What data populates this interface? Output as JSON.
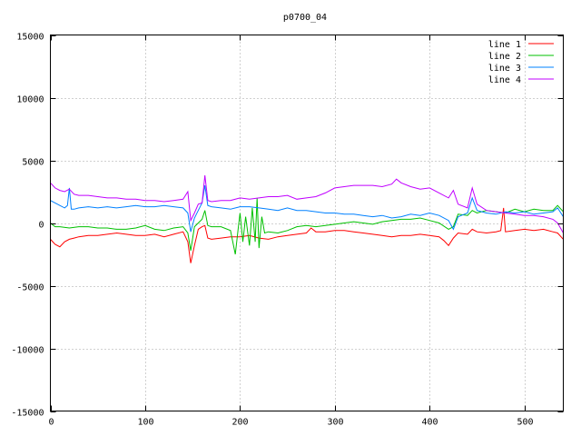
{
  "chart_data": {
    "type": "line",
    "title": "p0700_04",
    "xlabel": "",
    "ylabel": "",
    "xlim": [
      0,
      541
    ],
    "ylim": [
      -15000,
      15000
    ],
    "xticks": [
      0,
      100,
      200,
      300,
      400,
      500
    ],
    "yticks": [
      -15000,
      -10000,
      -5000,
      0,
      5000,
      10000,
      15000
    ],
    "grid": true,
    "legend_position": "top-right",
    "series": [
      {
        "name": "line 1",
        "color": "#ff0000",
        "x": [
          0,
          5,
          10,
          15,
          20,
          25,
          30,
          40,
          50,
          60,
          70,
          80,
          90,
          100,
          110,
          120,
          130,
          140,
          145,
          148,
          152,
          156,
          160,
          163,
          166,
          170,
          180,
          190,
          200,
          210,
          220,
          230,
          240,
          250,
          260,
          270,
          275,
          280,
          290,
          300,
          310,
          320,
          330,
          340,
          350,
          360,
          370,
          380,
          390,
          400,
          410,
          415,
          420,
          425,
          430,
          440,
          445,
          450,
          460,
          470,
          475,
          478,
          480,
          490,
          500,
          510,
          520,
          530,
          535,
          541
        ],
        "y": [
          -1300,
          -1700,
          -1900,
          -1500,
          -1300,
          -1200,
          -1100,
          -1000,
          -1000,
          -900,
          -800,
          -900,
          -1000,
          -1000,
          -900,
          -1100,
          -900,
          -700,
          -1500,
          -3200,
          -1800,
          -500,
          -300,
          -200,
          -1200,
          -1300,
          -1200,
          -1100,
          -1100,
          -1000,
          -1200,
          -1300,
          -1100,
          -1000,
          -900,
          -800,
          -400,
          -700,
          -700,
          -600,
          -600,
          -700,
          -800,
          -900,
          -1000,
          -1100,
          -1000,
          -1000,
          -900,
          -1000,
          -1100,
          -1400,
          -1800,
          -1200,
          -800,
          -900,
          -500,
          -700,
          -800,
          -700,
          -600,
          1200,
          -700,
          -600,
          -500,
          -600,
          -500,
          -700,
          -800,
          -1300
        ]
      },
      {
        "name": "line 2",
        "color": "#00c000",
        "x": [
          0,
          5,
          10,
          20,
          30,
          40,
          50,
          60,
          70,
          80,
          90,
          100,
          110,
          120,
          130,
          140,
          145,
          148,
          152,
          156,
          160,
          163,
          166,
          170,
          180,
          190,
          195,
          198,
          200,
          203,
          206,
          210,
          213,
          216,
          218,
          220,
          223,
          226,
          230,
          240,
          250,
          260,
          270,
          280,
          290,
          300,
          310,
          320,
          330,
          340,
          350,
          360,
          370,
          380,
          390,
          400,
          410,
          420,
          425,
          430,
          440,
          445,
          450,
          460,
          470,
          480,
          490,
          500,
          510,
          520,
          530,
          535,
          541
        ],
        "y": [
          0,
          -300,
          -300,
          -400,
          -300,
          -300,
          -400,
          -400,
          -500,
          -500,
          -400,
          -200,
          -500,
          -600,
          -400,
          -300,
          -800,
          -2200,
          -300,
          0,
          300,
          1000,
          -200,
          -300,
          -300,
          -600,
          -2500,
          -500,
          800,
          -1500,
          500,
          -1800,
          1200,
          -1500,
          2000,
          -2000,
          500,
          -800,
          -700,
          -800,
          -600,
          -300,
          -200,
          -300,
          -200,
          -100,
          0,
          100,
          0,
          -100,
          100,
          200,
          300,
          300,
          400,
          200,
          0,
          -500,
          -300,
          700,
          600,
          1000,
          800,
          1000,
          900,
          800,
          1100,
          900,
          1100,
          1000,
          1000,
          1400,
          900
        ]
      },
      {
        "name": "line 3",
        "color": "#0080ff",
        "x": [
          0,
          5,
          10,
          15,
          18,
          20,
          22,
          25,
          30,
          40,
          50,
          60,
          70,
          80,
          90,
          100,
          110,
          120,
          130,
          140,
          145,
          148,
          152,
          156,
          160,
          163,
          166,
          170,
          180,
          190,
          200,
          210,
          220,
          230,
          240,
          250,
          260,
          270,
          280,
          290,
          300,
          310,
          320,
          330,
          340,
          350,
          360,
          370,
          380,
          390,
          400,
          410,
          420,
          425,
          430,
          440,
          445,
          450,
          460,
          470,
          480,
          490,
          500,
          510,
          520,
          530,
          535,
          541
        ],
        "y": [
          1800,
          1600,
          1400,
          1200,
          1400,
          2800,
          1100,
          1100,
          1200,
          1300,
          1200,
          1300,
          1200,
          1300,
          1400,
          1300,
          1300,
          1400,
          1300,
          1200,
          800,
          -700,
          400,
          1000,
          1600,
          3000,
          1400,
          1300,
          1200,
          1100,
          1300,
          1300,
          1200,
          1100,
          1000,
          1200,
          1000,
          1000,
          900,
          800,
          800,
          700,
          700,
          600,
          500,
          600,
          400,
          500,
          700,
          600,
          800,
          600,
          200,
          -500,
          500,
          800,
          2000,
          1000,
          800,
          700,
          900,
          800,
          900,
          700,
          800,
          900,
          1200,
          500
        ]
      },
      {
        "name": "line 4",
        "color": "#c000ff",
        "x": [
          0,
          5,
          10,
          15,
          20,
          25,
          30,
          40,
          50,
          60,
          70,
          80,
          90,
          100,
          110,
          120,
          130,
          140,
          145,
          148,
          152,
          156,
          160,
          163,
          166,
          170,
          180,
          190,
          200,
          210,
          220,
          230,
          240,
          250,
          260,
          270,
          280,
          290,
          300,
          310,
          320,
          330,
          340,
          350,
          360,
          365,
          370,
          380,
          390,
          400,
          410,
          420,
          425,
          430,
          440,
          445,
          450,
          460,
          470,
          480,
          490,
          500,
          510,
          520,
          530,
          535,
          541
        ],
        "y": [
          3200,
          2800,
          2600,
          2500,
          2700,
          2300,
          2200,
          2200,
          2100,
          2000,
          2000,
          1900,
          1900,
          1800,
          1800,
          1700,
          1800,
          1900,
          2500,
          200,
          800,
          1500,
          1600,
          3800,
          1800,
          1700,
          1800,
          1800,
          2000,
          1900,
          2000,
          2100,
          2100,
          2200,
          1900,
          2000,
          2100,
          2400,
          2800,
          2900,
          3000,
          3000,
          3000,
          2900,
          3100,
          3500,
          3200,
          2900,
          2700,
          2800,
          2400,
          2000,
          2600,
          1500,
          1200,
          2800,
          1500,
          1000,
          900,
          800,
          700,
          600,
          600,
          500,
          300,
          0,
          -800
        ]
      }
    ]
  }
}
